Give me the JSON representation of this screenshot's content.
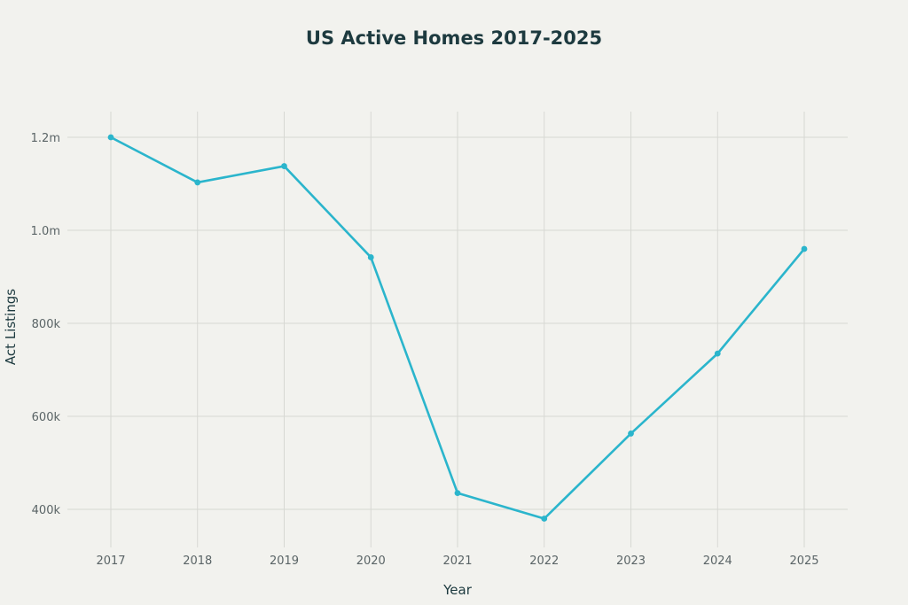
{
  "chart_data": {
    "type": "line",
    "title": "US Active Homes 2017-2025",
    "xlabel": "Year",
    "ylabel": "Act Listings",
    "x": [
      "2017",
      "2018",
      "2019",
      "2020",
      "2021",
      "2022",
      "2023",
      "2024",
      "2025"
    ],
    "series": [
      {
        "values": [
          1200000,
          1103000,
          1138000,
          942000,
          435000,
          380000,
          563000,
          735000,
          960000
        ]
      }
    ],
    "y_ticks": [
      400000,
      600000,
      800000,
      1000000,
      1200000
    ],
    "y_tick_labels": [
      "400k",
      "600k",
      "800k",
      "1.0m",
      "1.2m"
    ],
    "ylim": [
      330000,
      1250000
    ],
    "grid": true,
    "legend": "none",
    "colors": {
      "line": "#2bb5cc",
      "grid": "#d7d8d3",
      "background": "#f2f2ee",
      "title": "#1d3a3f",
      "tick_text": "#5a6466"
    }
  }
}
